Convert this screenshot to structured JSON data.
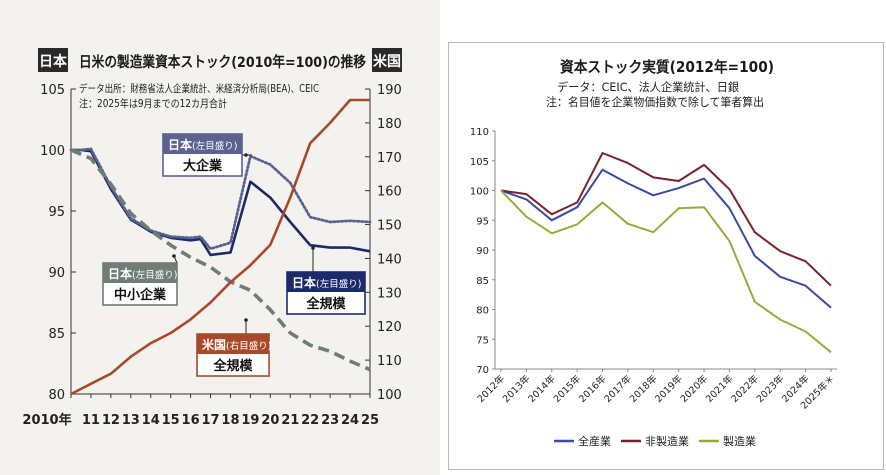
{
  "chart_data": [
    {
      "type": "line",
      "title": "日米の製造業資本ストック(2010年=100)の推移",
      "left_axis_label": "日本",
      "right_axis_label": "米国",
      "source_note": "データ出所：財務省法人企業統計、米経済分析局(BEA)、CEIC",
      "note": "注：2025年は9月までの12カ月合計",
      "x_tick_labels": [
        "2010年",
        "11",
        "12",
        "13",
        "14",
        "15",
        "16",
        "17",
        "18",
        "19",
        "20",
        "21",
        "22",
        "23",
        "24",
        "25"
      ],
      "left_ylim": [
        80,
        105
      ],
      "left_ticks": [
        "80",
        "85",
        "90",
        "95",
        "100",
        "105"
      ],
      "right_ylim": [
        100,
        190
      ],
      "right_ticks": [
        "100",
        "110",
        "120",
        "130",
        "140",
        "150",
        "160",
        "170",
        "180",
        "190"
      ],
      "series": [
        {
          "name": "日本(左目盛り) 全規模",
          "label_line1": "日本",
          "label_paren": "(左目盛り)",
          "label_line2": "全規模",
          "axis": "left",
          "color": "#1c2a6b",
          "x": [
            2010,
            2010.5,
            2011,
            2012,
            2013,
            2014,
            2015,
            2016,
            2016.5,
            2017,
            2018,
            2019,
            2020,
            2021,
            2022,
            2023,
            2024,
            2025
          ],
          "values": [
            100,
            100,
            99.9,
            96.8,
            94.3,
            93.3,
            92.8,
            92.6,
            92.7,
            91.4,
            91.6,
            97.4,
            96.1,
            94.1,
            92.2,
            92.0,
            92.0,
            91.7
          ]
        },
        {
          "name": "日本(左目盛り) 大企業",
          "label_line1": "日本",
          "label_paren": "(左目盛り)",
          "label_line2": "大企業",
          "axis": "left",
          "color": "#5b6290",
          "dashed": "dotted",
          "x": [
            2010,
            2010.5,
            2011,
            2012,
            2013,
            2014,
            2015,
            2016,
            2016.5,
            2017,
            2018,
            2019,
            2020,
            2021,
            2022,
            2023,
            2024,
            2025
          ],
          "values": [
            100,
            100,
            100.1,
            97.0,
            94.4,
            93.4,
            92.9,
            92.8,
            92.9,
            91.9,
            92.4,
            99.5,
            98.8,
            97.3,
            94.5,
            94.1,
            94.2,
            94.1
          ]
        },
        {
          "name": "日本(左目盛り) 中小企業",
          "label_line1": "日本",
          "label_paren": "(左目盛り)",
          "label_line2": "中小企業",
          "axis": "left",
          "color": "#6f7d77",
          "dashed": "dashed",
          "x": [
            2010,
            2011,
            2012,
            2013,
            2014,
            2015,
            2016,
            2017,
            2018,
            2019,
            2020,
            2021,
            2022,
            2023,
            2024,
            2025
          ],
          "values": [
            100,
            99.3,
            97.2,
            94.8,
            93.4,
            92.2,
            91.2,
            90.4,
            89.2,
            88.5,
            86.9,
            85.0,
            84.0,
            83.5,
            82.7,
            82.0
          ]
        },
        {
          "name": "米国(右目盛り) 全規模",
          "label_line1": "米国",
          "label_paren": "(右目盛り)",
          "label_line2": "全規模",
          "axis": "right",
          "color": "#a84a2a",
          "x": [
            2010,
            2011,
            2012,
            2013,
            2014,
            2015,
            2016,
            2017,
            2018,
            2019,
            2020,
            2021,
            2022,
            2023,
            2024,
            2025
          ],
          "values": [
            100,
            103,
            106,
            111,
            115,
            118,
            122,
            127,
            133,
            138,
            144,
            158,
            174,
            180,
            187,
            193
          ]
        }
      ]
    },
    {
      "type": "line",
      "title": "資本ストック実質(2012年=100)",
      "subtitle1": "データ：CEIC、法人企業統計、日銀",
      "subtitle2": "注：名目値を企業物価指数で除して筆者算出",
      "ylim": [
        70,
        110
      ],
      "y_ticks": [
        "70",
        "75",
        "80",
        "85",
        "90",
        "95",
        "100",
        "105",
        "110"
      ],
      "categories": [
        "2012年",
        "2013年",
        "2014年",
        "2015年",
        "2016年",
        "2017年",
        "2018年",
        "2019年",
        "2020年",
        "2021年",
        "2022年",
        "2023年",
        "2024年",
        "2025年＊"
      ],
      "series": [
        {
          "name": "全産業",
          "color": "#3a4aa0",
          "values": [
            100,
            98.5,
            95.0,
            97.2,
            103.5,
            101.2,
            99.2,
            100.4,
            102.0,
            97.0,
            89.0,
            85.5,
            84.0,
            80.3
          ]
        },
        {
          "name": "非製造業",
          "color": "#7a2030",
          "values": [
            100,
            99.4,
            96.0,
            98.0,
            106.3,
            104.6,
            102.2,
            101.6,
            104.3,
            100.2,
            93.0,
            89.8,
            88.1,
            84.0
          ]
        },
        {
          "name": "製造業",
          "color": "#9aaa3a",
          "values": [
            100,
            95.6,
            92.8,
            94.3,
            98.0,
            94.4,
            93.0,
            97.0,
            97.2,
            91.5,
            81.3,
            78.3,
            76.3,
            72.8
          ]
        }
      ]
    }
  ]
}
